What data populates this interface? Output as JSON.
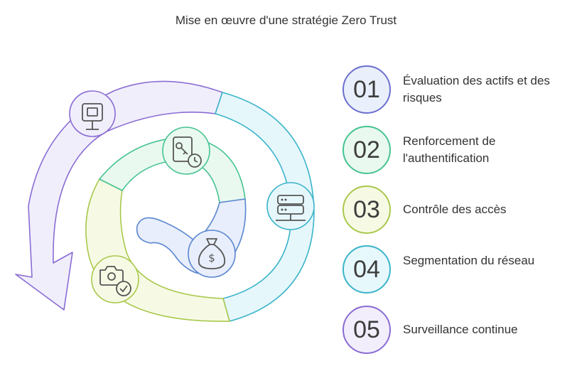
{
  "title": "Mise en œuvre d'une stratégie Zero Trust",
  "steps": [
    {
      "number": "01",
      "label": "Évaluation des actifs et des risques",
      "color": "#6b6fcf",
      "fill": "#eaf0fb",
      "icon": "cctv-camera-icon"
    },
    {
      "number": "02",
      "label": "Renforcement de l'authentification",
      "color": "#46c392",
      "fill": "#e9f9ef",
      "icon": "key-document-clock-icon"
    },
    {
      "number": "03",
      "label": "Contrôle des accès",
      "color": "#a9c84c",
      "fill": "#f6fae4",
      "icon": "server-icon"
    },
    {
      "number": "04",
      "label": "Segmentation du réseau",
      "color": "#3ab4c9",
      "fill": "#e7f8fc",
      "icon": "camera-check-icon"
    },
    {
      "number": "05",
      "label": "Surveillance continue",
      "color": "#8a6cd3",
      "fill": "#f2eefc",
      "icon": "money-bag-icon"
    }
  ]
}
